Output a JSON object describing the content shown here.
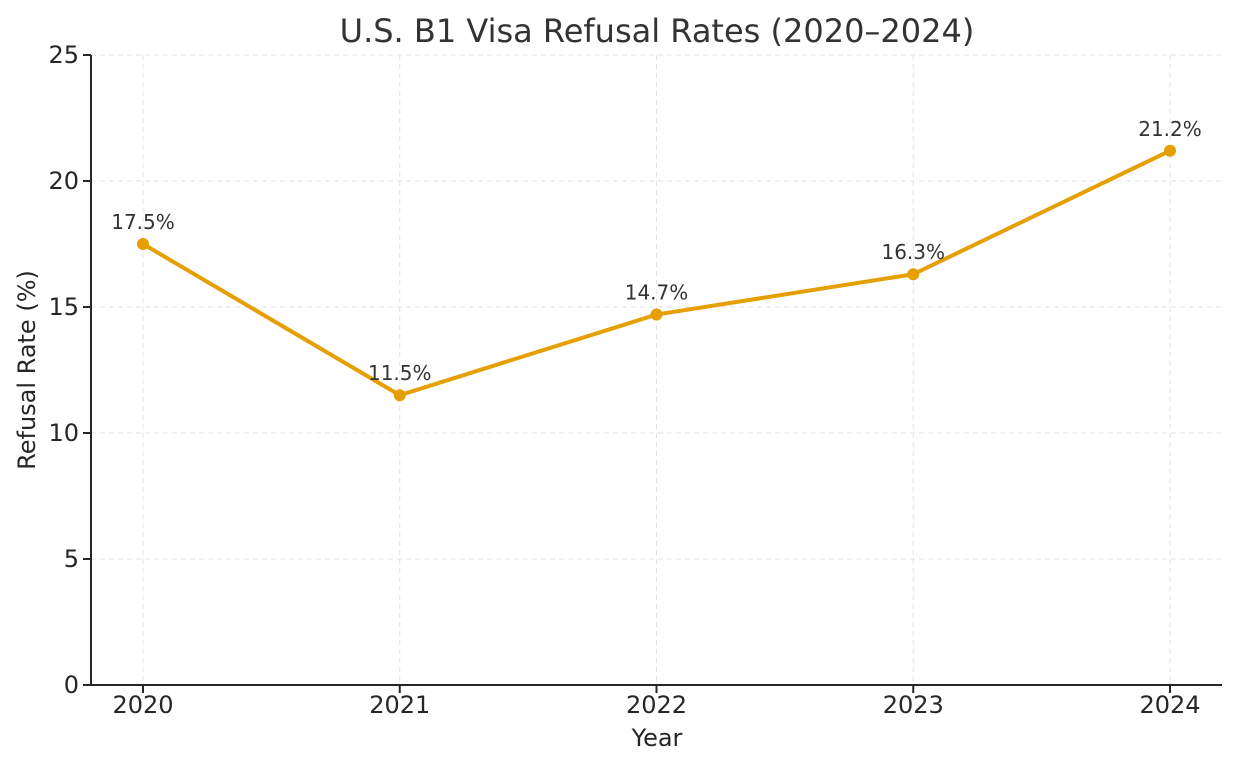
{
  "chart_data": {
    "type": "line",
    "title": "U.S. B1 Visa Refusal Rates (2020–2024)",
    "xlabel": "Year",
    "ylabel": "Refusal Rate (%)",
    "x": [
      "2020",
      "2021",
      "2022",
      "2023",
      "2024"
    ],
    "series": [
      {
        "values": [
          17.5,
          11.5,
          14.7,
          16.3,
          21.2
        ],
        "labels": [
          "17.5%",
          "11.5%",
          "14.7%",
          "16.3%",
          "21.2%"
        ],
        "color": "#e69f00"
      }
    ],
    "yticks": [
      "0",
      "5",
      "10",
      "15",
      "20",
      "25"
    ],
    "ylim": [
      0,
      25
    ],
    "grid": true,
    "marker": "circle"
  }
}
